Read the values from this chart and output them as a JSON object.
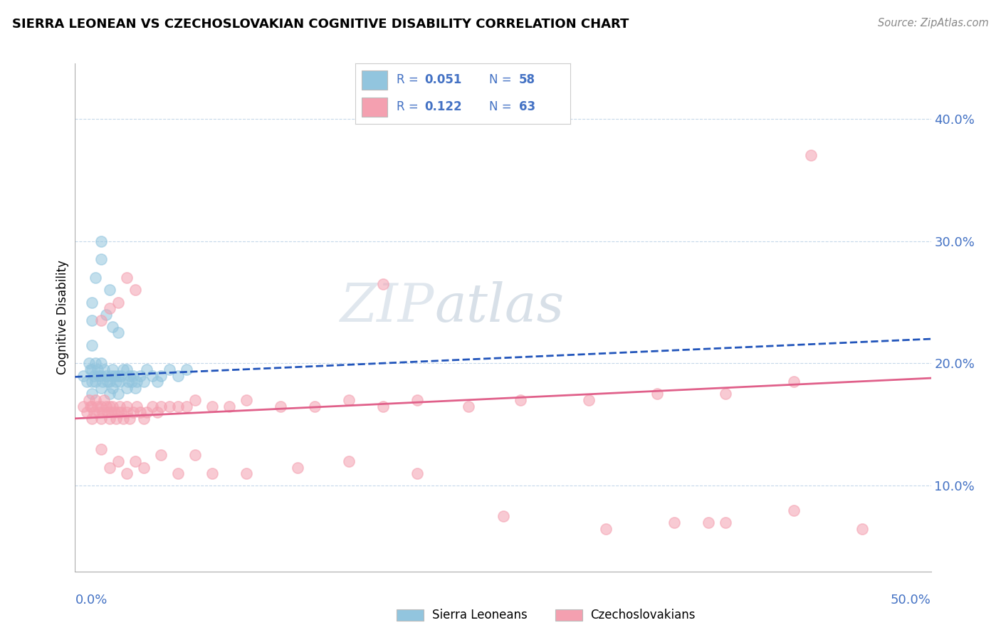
{
  "title": "SIERRA LEONEAN VS CZECHOSLOVAKIAN COGNITIVE DISABILITY CORRELATION CHART",
  "source": "Source: ZipAtlas.com",
  "ylabel": "Cognitive Disability",
  "ytick_vals": [
    0.1,
    0.2,
    0.3,
    0.4
  ],
  "ytick_labels": [
    "10.0%",
    "20.0%",
    "30.0%",
    "40.0%"
  ],
  "xlim": [
    0.0,
    0.5
  ],
  "ylim": [
    0.03,
    0.445
  ],
  "color_sl": "#92c5de",
  "color_cz": "#f4a0b0",
  "color_sl_line": "#2255bb",
  "color_cz_line": "#e0608a",
  "color_axis_text": "#4472c4",
  "watermark": "ZIPatlas",
  "legend_r1": "0.051",
  "legend_n1": "58",
  "legend_r2": "0.122",
  "legend_n2": "63",
  "sl_x": [
    0.005,
    0.007,
    0.008,
    0.009,
    0.01,
    0.01,
    0.01,
    0.01,
    0.011,
    0.012,
    0.012,
    0.013,
    0.014,
    0.015,
    0.015,
    0.015,
    0.016,
    0.017,
    0.018,
    0.019,
    0.02,
    0.02,
    0.021,
    0.022,
    0.022,
    0.023,
    0.024,
    0.025,
    0.025,
    0.026,
    0.027,
    0.028,
    0.03,
    0.03,
    0.031,
    0.032,
    0.033,
    0.034,
    0.035,
    0.036,
    0.038,
    0.04,
    0.042,
    0.045,
    0.048,
    0.05,
    0.055,
    0.06,
    0.065,
    0.01,
    0.01,
    0.012,
    0.015,
    0.015,
    0.018,
    0.02,
    0.022,
    0.025
  ],
  "sl_y": [
    0.19,
    0.185,
    0.2,
    0.195,
    0.175,
    0.185,
    0.195,
    0.215,
    0.19,
    0.185,
    0.2,
    0.195,
    0.19,
    0.18,
    0.19,
    0.2,
    0.185,
    0.195,
    0.19,
    0.185,
    0.175,
    0.185,
    0.19,
    0.18,
    0.195,
    0.19,
    0.185,
    0.175,
    0.19,
    0.185,
    0.19,
    0.195,
    0.18,
    0.195,
    0.185,
    0.19,
    0.185,
    0.19,
    0.18,
    0.185,
    0.19,
    0.185,
    0.195,
    0.19,
    0.185,
    0.19,
    0.195,
    0.19,
    0.195,
    0.235,
    0.25,
    0.27,
    0.285,
    0.3,
    0.24,
    0.26,
    0.23,
    0.225
  ],
  "cz_x": [
    0.005,
    0.007,
    0.008,
    0.009,
    0.01,
    0.01,
    0.011,
    0.012,
    0.013,
    0.014,
    0.015,
    0.015,
    0.016,
    0.017,
    0.018,
    0.019,
    0.02,
    0.02,
    0.021,
    0.022,
    0.023,
    0.024,
    0.025,
    0.026,
    0.027,
    0.028,
    0.03,
    0.03,
    0.032,
    0.034,
    0.036,
    0.038,
    0.04,
    0.042,
    0.045,
    0.048,
    0.05,
    0.055,
    0.06,
    0.065,
    0.07,
    0.08,
    0.09,
    0.1,
    0.12,
    0.14,
    0.16,
    0.18,
    0.2,
    0.23,
    0.26,
    0.3,
    0.34,
    0.38,
    0.42,
    0.015,
    0.02,
    0.025,
    0.03,
    0.035,
    0.18,
    0.38,
    0.43
  ],
  "cz_y": [
    0.165,
    0.16,
    0.17,
    0.165,
    0.155,
    0.165,
    0.16,
    0.17,
    0.165,
    0.16,
    0.155,
    0.165,
    0.16,
    0.17,
    0.165,
    0.16,
    0.155,
    0.165,
    0.16,
    0.165,
    0.16,
    0.155,
    0.16,
    0.165,
    0.16,
    0.155,
    0.16,
    0.165,
    0.155,
    0.16,
    0.165,
    0.16,
    0.155,
    0.16,
    0.165,
    0.16,
    0.165,
    0.165,
    0.165,
    0.165,
    0.17,
    0.165,
    0.165,
    0.17,
    0.165,
    0.165,
    0.17,
    0.165,
    0.17,
    0.165,
    0.17,
    0.17,
    0.175,
    0.175,
    0.185,
    0.235,
    0.245,
    0.25,
    0.27,
    0.26,
    0.265,
    0.07,
    0.37
  ],
  "cz_low_x": [
    0.015,
    0.02,
    0.025,
    0.03,
    0.035,
    0.04,
    0.05,
    0.06,
    0.07,
    0.08,
    0.1,
    0.13,
    0.16,
    0.2,
    0.25,
    0.31,
    0.37,
    0.42,
    0.46,
    0.35
  ],
  "cz_low_y": [
    0.13,
    0.115,
    0.12,
    0.11,
    0.12,
    0.115,
    0.125,
    0.11,
    0.125,
    0.11,
    0.11,
    0.115,
    0.12,
    0.11,
    0.075,
    0.065,
    0.07,
    0.08,
    0.065,
    0.07
  ],
  "sl_trend_x": [
    0.0,
    0.5
  ],
  "sl_trend_y": [
    0.189,
    0.22
  ],
  "cz_trend_x": [
    0.0,
    0.5
  ],
  "cz_trend_y": [
    0.155,
    0.188
  ]
}
